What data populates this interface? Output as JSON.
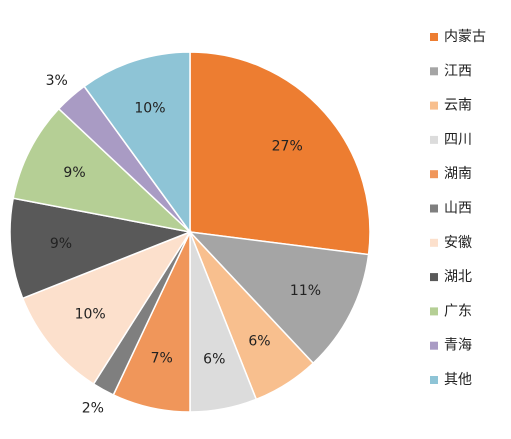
{
  "chart_data": {
    "type": "pie",
    "categories": [
      "内蒙古",
      "江西",
      "云南",
      "四川",
      "湖南",
      "山西",
      "安徽",
      "湖北",
      "广东",
      "青海",
      "其他"
    ],
    "values": [
      27,
      11,
      6,
      6,
      7,
      2,
      10,
      9,
      9,
      3,
      10
    ],
    "value_labels": [
      "27%",
      "11%",
      "6%",
      "6%",
      "7%",
      "2%",
      "10%",
      "9%",
      "9%",
      "3%",
      "10%"
    ],
    "colors": [
      "#ED7D31",
      "#A5A5A5",
      "#F8BF8E",
      "#DCDCDC",
      "#F0965A",
      "#7F7F7F",
      "#FCE0CC",
      "#595959",
      "#B5CF95",
      "#A99BC4",
      "#8EC4D6"
    ],
    "legend": "right"
  }
}
